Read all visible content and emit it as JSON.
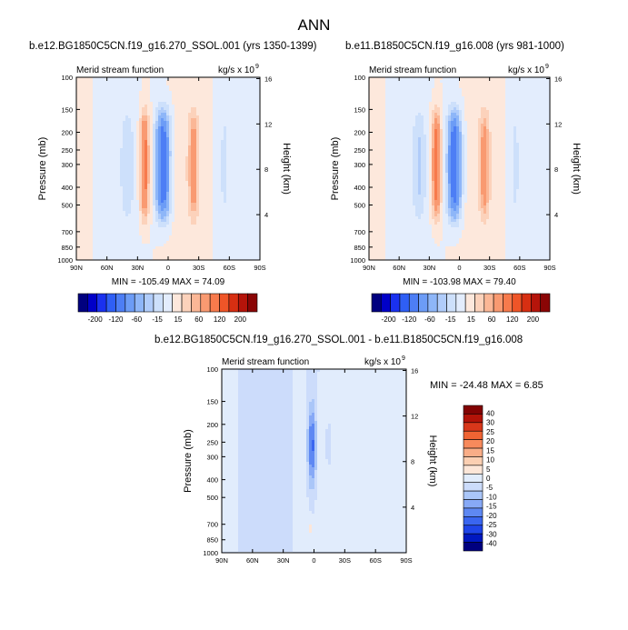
{
  "page_title": "ANN",
  "colors": {
    "levels_main": [
      "#00007f",
      "#0000c8",
      "#1a31ef",
      "#2f5ff5",
      "#4d7ef5",
      "#6c9cf6",
      "#8eb6f8",
      "#b0ccfa",
      "#cde0fb",
      "#e3edfd",
      "#fde8dc",
      "#fcd2bb",
      "#fbb796",
      "#f99a71",
      "#f77a4c",
      "#ef5528",
      "#d72f12",
      "#b5140a",
      "#8a0505"
    ],
    "levels_diff": [
      "#00007f",
      "#0018c0",
      "#1f45e8",
      "#3a66f0",
      "#5e88f3",
      "#87a9f6",
      "#aac6f8",
      "#ccdcfb",
      "#e1ecfc",
      "#fce6d8",
      "#fbcfb2",
      "#f9ad87",
      "#f78a5c",
      "#f06433",
      "#d8371a",
      "#b21308",
      "#820303"
    ]
  },
  "chart_data": [
    {
      "type": "heatmap",
      "title": "b.e12.BG1850C5CN.f19_g16.270_SSOL.001 (yrs 1350-1399)",
      "left_string": "Merid stream function",
      "right_string": "kg/s x 10",
      "right_string_exp": "9",
      "xlabel": "",
      "ylabel": "Pressure (mb)",
      "y2label": "Height (km)",
      "x_ticks": [
        "90N",
        "60N",
        "30N",
        "0",
        "30S",
        "60S",
        "90S"
      ],
      "y_ticks": [
        "100",
        "150",
        "200",
        "250",
        "300",
        "400",
        "500",
        "700",
        "850",
        "1000"
      ],
      "y2_ticks": [
        "16",
        "12",
        "8",
        "4"
      ],
      "y_scale": "log",
      "xlim": [
        90,
        -90
      ],
      "ylim": [
        100,
        1000
      ],
      "min_max": "MIN = -105.49  MAX =  74.09",
      "features": [
        {
          "lat": 40,
          "width": 6,
          "value": -20
        },
        {
          "lat": 23,
          "width": 4.5,
          "value": 70
        },
        {
          "lat": 5,
          "width": 7,
          "value": -105
        },
        {
          "lat": -25,
          "width": 5,
          "value": 45
        },
        {
          "lat": -55,
          "width": 5,
          "value": -15
        }
      ]
    },
    {
      "type": "heatmap",
      "title": "b.e11.B1850C5CN.f19_g16.008 (yrs 981-1000)",
      "left_string": "Merid stream function",
      "right_string": "kg/s x 10",
      "right_string_exp": "9",
      "xlabel": "",
      "ylabel": "Pressure (mb)",
      "y2label": "Height (km)",
      "x_ticks": [
        "90N",
        "60N",
        "30N",
        "0",
        "30S",
        "60S",
        "90S"
      ],
      "y_ticks": [
        "100",
        "150",
        "200",
        "250",
        "300",
        "400",
        "500",
        "700",
        "850",
        "1000"
      ],
      "y2_ticks": [
        "16",
        "12",
        "8",
        "4"
      ],
      "y_scale": "log",
      "xlim": [
        90,
        -90
      ],
      "ylim": [
        100,
        1000
      ],
      "min_max": "MIN = -103.98  MAX =  79.40",
      "features": [
        {
          "lat": 40,
          "width": 6,
          "value": -25
        },
        {
          "lat": 23,
          "width": 4.5,
          "value": 75
        },
        {
          "lat": 5,
          "width": 7,
          "value": -104
        },
        {
          "lat": -25,
          "width": 5,
          "value": 45
        },
        {
          "lat": -55,
          "width": 5,
          "value": -15
        }
      ]
    },
    {
      "type": "heatmap",
      "title": "b.e12.BG1850C5CN.f19_g16.270_SSOL.001 - b.e11.B1850C5CN.f19_g16.008",
      "left_string": "Merid stream function",
      "right_string": "kg/s x 10",
      "right_string_exp": "9",
      "xlabel": "",
      "ylabel": "Pressure (mb)",
      "y2label": "Height (km)",
      "x_ticks": [
        "90N",
        "60N",
        "30N",
        "0",
        "30S",
        "60S",
        "90S"
      ],
      "y_ticks": [
        "100",
        "150",
        "200",
        "250",
        "300",
        "400",
        "500",
        "700",
        "850",
        "1000"
      ],
      "y2_ticks": [
        "16",
        "12",
        "8",
        "4"
      ],
      "y_scale": "log",
      "xlim": [
        90,
        -90
      ],
      "ylim": [
        100,
        1000
      ],
      "min_max": "MIN = -24.48  MAX =   6.85",
      "features": [
        {
          "lat": 2,
          "width": 4,
          "value": -24
        },
        {
          "lat": -14,
          "width": 2.5,
          "value": -4
        },
        {
          "lat": 3,
          "width": 2,
          "value": 6
        }
      ]
    }
  ],
  "colorbars": {
    "main": [
      "-200",
      "-120",
      "-60",
      "-15",
      "15",
      "60",
      "120",
      "200"
    ],
    "diff": [
      "40",
      "30",
      "25",
      "20",
      "15",
      "10",
      "5",
      "0",
      "-5",
      "-10",
      "-15",
      "-20",
      "-25",
      "-30",
      "-40"
    ]
  }
}
